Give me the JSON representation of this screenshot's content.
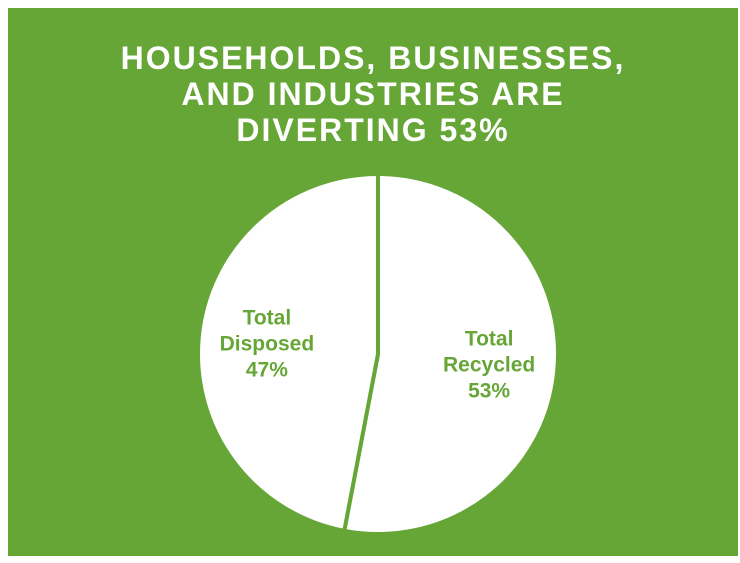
{
  "title_lines": [
    "HOUSEHOLDS, BUSINESSES,",
    "AND INDUSTRIES ARE",
    "DIVERTING 53%"
  ],
  "colors": {
    "background": "#66a637",
    "slice_fill": "#ffffff",
    "separator": "#66a637",
    "label_text": "#66a637",
    "title_text": "#ffffff"
  },
  "chart_data": {
    "type": "pie",
    "title": "HOUSEHOLDS, BUSINESSES, AND INDUSTRIES ARE DIVERTING 53%",
    "slices": [
      {
        "label_lines": [
          "Total",
          "Recycled",
          "53%"
        ],
        "value": 53
      },
      {
        "label_lines": [
          "Total",
          "Disposed",
          "47%"
        ],
        "value": 47
      }
    ],
    "start": "12 o'clock",
    "direction": "clockwise",
    "legend": "none"
  }
}
